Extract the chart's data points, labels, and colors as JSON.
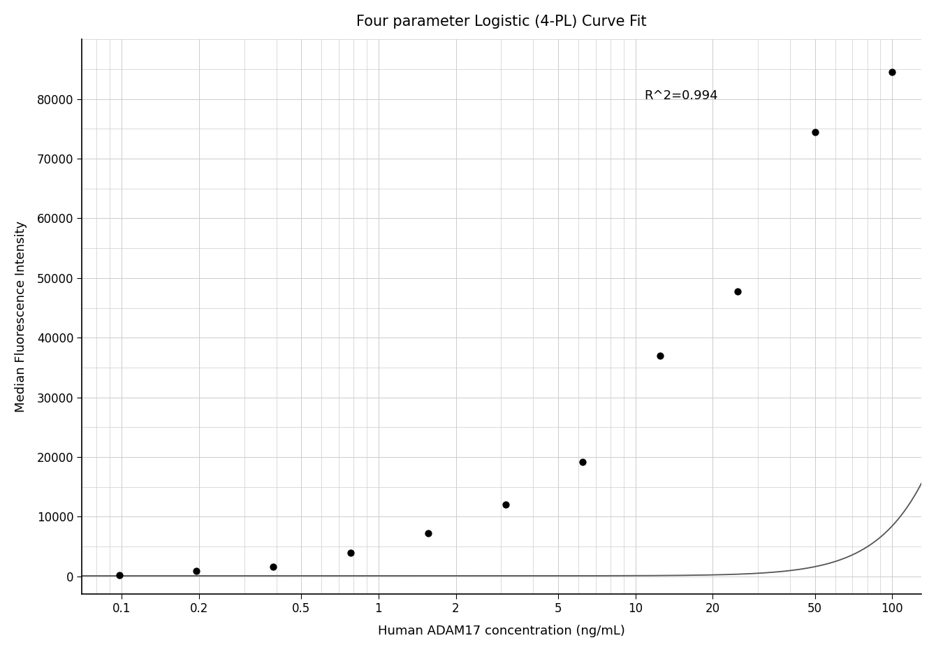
{
  "title": "Four parameter Logistic (4-PL) Curve Fit",
  "xlabel": "Human ADAM17 concentration (ng/mL)",
  "ylabel": "Median Fluorescence Intensity",
  "r_squared": "R^2=0.994",
  "scatter_x": [
    0.098,
    0.195,
    0.39,
    0.781,
    1.563,
    3.125,
    6.25,
    12.5,
    25,
    50,
    100
  ],
  "scatter_y": [
    200,
    900,
    1600,
    4000,
    7200,
    12000,
    19200,
    37000,
    47800,
    74500,
    84500
  ],
  "xmin": 0.07,
  "xmax": 130,
  "ymin": -3000,
  "ymax": 90000,
  "xticks": [
    0.1,
    0.2,
    0.5,
    1,
    2,
    5,
    10,
    20,
    50,
    100
  ],
  "xtick_labels": [
    "0.1",
    "0.2",
    "0.5",
    "1",
    "2",
    "5",
    "10",
    "20",
    "50",
    "100"
  ],
  "yticks": [
    0,
    10000,
    20000,
    30000,
    40000,
    50000,
    60000,
    70000,
    80000
  ],
  "background_color": "#ffffff",
  "grid_color": "#cccccc",
  "scatter_color": "#000000",
  "curve_color": "#555555",
  "title_fontsize": 15,
  "label_fontsize": 13,
  "tick_fontsize": 12
}
